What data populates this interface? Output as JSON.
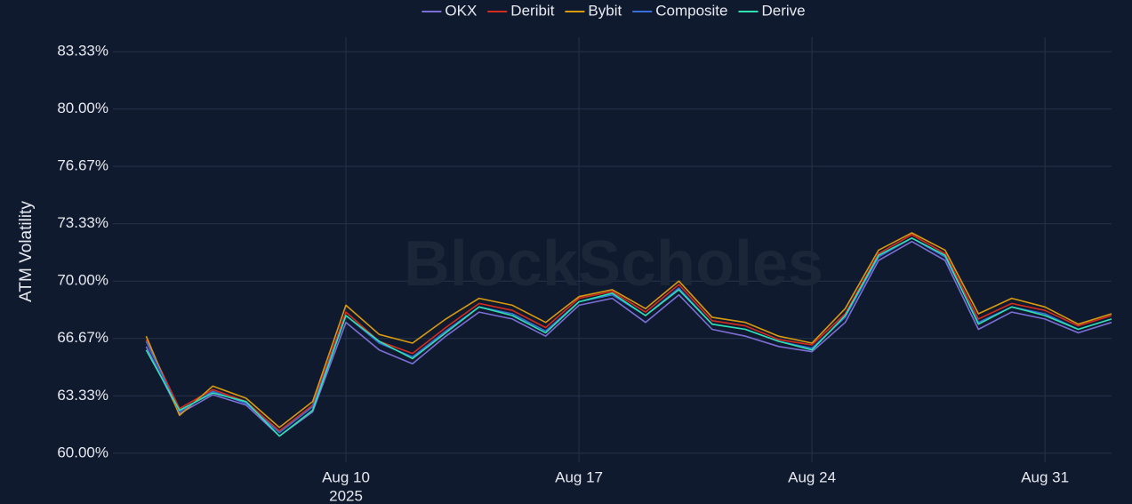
{
  "chart_data": {
    "type": "line",
    "y_axis_label": "ATM Volatility",
    "watermark": "BlockScholes",
    "x": [
      "2025-08-04",
      "2025-08-05",
      "2025-08-06",
      "2025-08-07",
      "2025-08-08",
      "2025-08-09",
      "2025-08-10",
      "2025-08-11",
      "2025-08-12",
      "2025-08-13",
      "2025-08-14",
      "2025-08-15",
      "2025-08-16",
      "2025-08-17",
      "2025-08-18",
      "2025-08-19",
      "2025-08-20",
      "2025-08-21",
      "2025-08-22",
      "2025-08-23",
      "2025-08-24",
      "2025-08-25",
      "2025-08-26",
      "2025-08-27",
      "2025-08-28",
      "2025-08-29",
      "2025-08-30",
      "2025-08-31",
      "2025-09-01",
      "2025-09-02"
    ],
    "xlim": [
      "2025-08-03",
      "2025-09-02"
    ],
    "xticks": [
      {
        "value": "2025-08-10",
        "label": "Aug 10"
      },
      {
        "value": "2025-08-17",
        "label": "Aug 17"
      },
      {
        "value": "2025-08-24",
        "label": "Aug 24"
      },
      {
        "value": "2025-08-31",
        "label": "Aug 31"
      }
    ],
    "xtick_year": "2025",
    "ylim": [
      59.48,
      84.16
    ],
    "yticks": [
      {
        "value": 60,
        "label": "60.00%"
      },
      {
        "value": 63.33,
        "label": "63.33%"
      },
      {
        "value": 66.67,
        "label": "66.67%"
      },
      {
        "value": 70,
        "label": "70.00%"
      },
      {
        "value": 73.33,
        "label": "73.33%"
      },
      {
        "value": 76.67,
        "label": "76.67%"
      },
      {
        "value": 80,
        "label": "80.00%"
      },
      {
        "value": 83.33,
        "label": "83.33%"
      }
    ],
    "grid": true,
    "legend": "top",
    "series": [
      {
        "name": "OKX",
        "color": "#7b6fd6",
        "values": [
          66.2,
          62.3,
          63.4,
          62.8,
          61.0,
          62.4,
          67.6,
          66.0,
          65.2,
          66.8,
          68.2,
          67.8,
          66.8,
          68.6,
          69.0,
          67.6,
          69.2,
          67.2,
          66.8,
          66.2,
          65.9,
          67.6,
          71.2,
          72.3,
          71.2,
          67.2,
          68.2,
          67.8,
          67.0,
          67.6
        ]
      },
      {
        "name": "Deribit",
        "color": "#d62b1f",
        "values": [
          66.6,
          62.6,
          63.7,
          63.0,
          61.3,
          62.8,
          68.2,
          66.5,
          65.8,
          67.3,
          68.7,
          68.3,
          67.3,
          69.0,
          69.4,
          68.2,
          69.8,
          67.7,
          67.4,
          66.6,
          66.3,
          68.1,
          71.6,
          72.7,
          71.6,
          67.8,
          68.7,
          68.3,
          67.4,
          68.0
        ]
      },
      {
        "name": "Bybit",
        "color": "#d89a0e",
        "values": [
          66.8,
          62.2,
          63.9,
          63.2,
          61.5,
          63.0,
          68.6,
          66.9,
          66.4,
          67.8,
          69.0,
          68.6,
          67.6,
          69.1,
          69.5,
          68.4,
          70.0,
          67.9,
          67.6,
          66.8,
          66.4,
          68.4,
          71.8,
          72.8,
          71.8,
          68.1,
          69.0,
          68.5,
          67.5,
          68.1
        ]
      },
      {
        "name": "Composite",
        "color": "#3a6fd8",
        "values": [
          66.5,
          62.4,
          63.6,
          62.9,
          61.2,
          62.7,
          68.0,
          66.4,
          65.6,
          67.1,
          68.5,
          68.1,
          67.1,
          68.8,
          69.2,
          68.0,
          69.6,
          67.5,
          67.2,
          66.5,
          66.1,
          67.9,
          71.4,
          72.5,
          71.4,
          67.6,
          68.5,
          68.1,
          67.2,
          67.8
        ]
      },
      {
        "name": "Derive",
        "color": "#2fe0b0",
        "values": [
          66.0,
          62.5,
          63.5,
          63.0,
          61.0,
          62.5,
          68.0,
          66.5,
          65.5,
          67.0,
          68.5,
          68.0,
          67.0,
          68.8,
          69.3,
          68.0,
          69.5,
          67.5,
          67.2,
          66.5,
          66.0,
          68.0,
          71.5,
          72.5,
          71.5,
          67.5,
          68.5,
          68.0,
          67.2,
          67.8
        ]
      }
    ]
  }
}
